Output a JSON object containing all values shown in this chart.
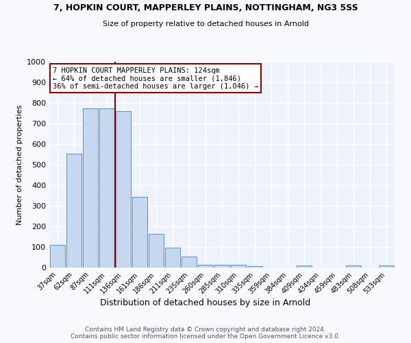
{
  "title1": "7, HOPKIN COURT, MAPPERLEY PLAINS, NOTTINGHAM, NG3 5SS",
  "title2": "Size of property relative to detached houses in Arnold",
  "xlabel": "Distribution of detached houses by size in Arnold",
  "ylabel": "Number of detached properties",
  "categories": [
    "37sqm",
    "62sqm",
    "87sqm",
    "111sqm",
    "136sqm",
    "161sqm",
    "186sqm",
    "211sqm",
    "235sqm",
    "260sqm",
    "285sqm",
    "310sqm",
    "335sqm",
    "359sqm",
    "384sqm",
    "409sqm",
    "434sqm",
    "459sqm",
    "483sqm",
    "508sqm",
    "533sqm"
  ],
  "values": [
    110,
    555,
    775,
    775,
    760,
    345,
    165,
    97,
    52,
    15,
    13,
    13,
    8,
    0,
    0,
    10,
    0,
    0,
    10,
    0,
    10
  ],
  "bar_color": "#c5d8f0",
  "bar_edge_color": "#5b9bd5",
  "ylim": [
    0,
    1000
  ],
  "yticks": [
    0,
    100,
    200,
    300,
    400,
    500,
    600,
    700,
    800,
    900,
    1000
  ],
  "property_line_color": "#8b0000",
  "annotation_text": "7 HOPKIN COURT MAPPERLEY PLAINS: 124sqm\n← 64% of detached houses are smaller (1,846)\n36% of semi-detached houses are larger (1,046) →",
  "annotation_box_color": "#ffffff",
  "annotation_border_color": "#8b0000",
  "footer_text": "Contains HM Land Registry data © Crown copyright and database right 2024.\nContains public sector information licensed under the Open Government Licence v3.0.",
  "bg_color": "#eef2fa",
  "grid_color": "#ffffff",
  "fig_bg_color": "#f8f8ff"
}
